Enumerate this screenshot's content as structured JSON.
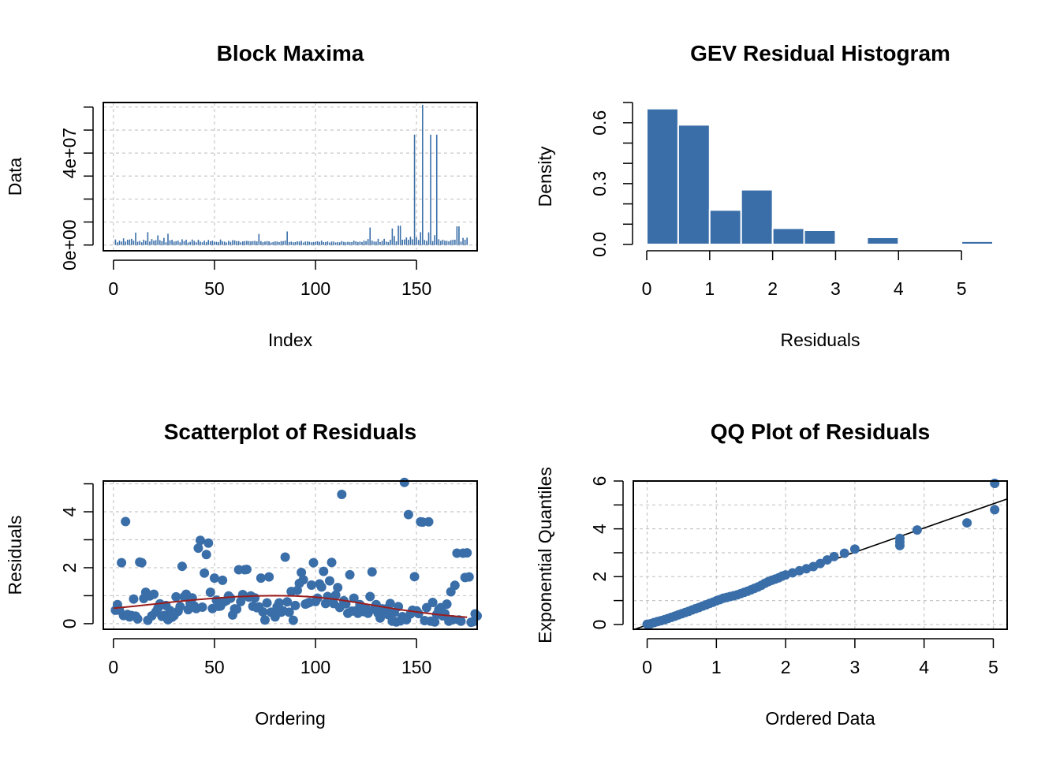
{
  "colors": {
    "primary": "#3A6EA8",
    "smooth": "#9B1C1C",
    "grid": "#C8C8C8",
    "refline": "#000000"
  },
  "chart_data": [
    {
      "type": "bar",
      "title": "Block Maxima",
      "xlabel": "Index",
      "ylabel": "Data",
      "xlim": [
        -5,
        180
      ],
      "ylim": [
        -2500000,
        62000000
      ],
      "grid": true,
      "x_ticks": [
        "0",
        "50",
        "100",
        "150"
      ],
      "y_ticks": [
        "0e+00",
        "4e+07"
      ],
      "values": [
        2400000,
        1200000,
        1900000,
        1500000,
        2900000,
        1500000,
        2300000,
        2400000,
        2700000,
        1900000,
        5400000,
        1400000,
        1800000,
        1200000,
        2300000,
        1800000,
        5600000,
        1500000,
        2600000,
        1900000,
        2100000,
        4200000,
        2100000,
        1700000,
        3100000,
        1200000,
        4900000,
        2000000,
        2300000,
        1500000,
        1700000,
        1900000,
        1200000,
        2500000,
        1700000,
        2300000,
        1100000,
        1400000,
        2400000,
        1800000,
        1200000,
        2300000,
        1500000,
        1200000,
        1900000,
        1300000,
        2200000,
        1600000,
        1900000,
        1400000,
        1400000,
        1300000,
        2400000,
        1600000,
        1500000,
        1100000,
        1800000,
        1400000,
        2100000,
        2000000,
        1700000,
        1700000,
        1200000,
        1600000,
        1700000,
        1800000,
        1700000,
        1600000,
        1700000,
        1800000,
        1600000,
        4800000,
        1700000,
        1300000,
        1500000,
        1700000,
        1600000,
        1100000,
        1300000,
        1600000,
        1500000,
        1300000,
        1700000,
        1700000,
        1900000,
        5900000,
        1300000,
        1500000,
        1200000,
        1300000,
        1600000,
        1500000,
        1800000,
        1100000,
        1500000,
        1600000,
        1400000,
        1200000,
        1300000,
        1400000,
        1600000,
        1400000,
        1900000,
        1300000,
        1300000,
        1600000,
        1100000,
        1500000,
        1500000,
        1100000,
        1300000,
        1200000,
        1700000,
        1400000,
        1200000,
        1400000,
        1300000,
        1300000,
        1900000,
        1600000,
        1300000,
        1500000,
        1300000,
        1900000,
        1700000,
        2600000,
        7600000,
        1900000,
        1500000,
        1500000,
        2700000,
        1300000,
        1800000,
        2700000,
        1500000,
        1300000,
        2300000,
        7200000,
        3900000,
        1600000,
        8400000,
        8400000,
        2300000,
        2400000,
        3300000,
        2300000,
        3600000,
        2500000,
        48000000,
        3300000,
        2200000,
        5600000,
        61000000,
        2200000,
        1800000,
        5500000,
        48000000,
        1700000,
        4300000,
        48000000,
        2500000,
        1800000,
        2300000,
        1900000,
        1800000,
        1600000,
        2100000,
        2300000,
        2300000,
        8100000,
        8100000,
        1500000,
        3100000,
        2300000,
        3200000
      ]
    },
    {
      "type": "histogram",
      "title": "GEV Residual Histogram",
      "xlabel": "Residuals",
      "ylabel": "Density",
      "xlim": [
        0,
        5.5
      ],
      "ylim": [
        0,
        0.7
      ],
      "grid": false,
      "x_ticks": [
        "0",
        "1",
        "2",
        "3",
        "4",
        "5"
      ],
      "y_ticks": [
        "0.0",
        "0.3",
        "0.6"
      ],
      "bins": [
        {
          "x0": 0.0,
          "x1": 0.5,
          "density": 0.67
        },
        {
          "x0": 0.5,
          "x1": 1.0,
          "density": 0.59
        },
        {
          "x0": 1.0,
          "x1": 1.5,
          "density": 0.17
        },
        {
          "x0": 1.5,
          "x1": 2.0,
          "density": 0.27
        },
        {
          "x0": 2.0,
          "x1": 2.5,
          "density": 0.08
        },
        {
          "x0": 2.5,
          "x1": 3.0,
          "density": 0.07
        },
        {
          "x0": 3.0,
          "x1": 3.5,
          "density": 0.0
        },
        {
          "x0": 3.5,
          "x1": 4.0,
          "density": 0.035
        },
        {
          "x0": 4.0,
          "x1": 4.5,
          "density": 0.0
        },
        {
          "x0": 4.5,
          "x1": 5.0,
          "density": 0.006
        },
        {
          "x0": 5.0,
          "x1": 5.5,
          "density": 0.016
        }
      ]
    },
    {
      "type": "scatter",
      "title": "Scatterplot of Residuals",
      "xlabel": "Ordering",
      "ylabel": "Residuals",
      "xlim": [
        -5,
        180
      ],
      "ylim": [
        -0.2,
        5.1
      ],
      "grid": true,
      "x_ticks": [
        "0",
        "50",
        "100",
        "150"
      ],
      "y_ticks": [
        "0",
        "2",
        "4"
      ],
      "values": [
        0.48,
        0.68,
        0.48,
        2.18,
        0.29,
        3.65,
        0.33,
        0.24,
        0.29,
        0.88,
        0.27,
        0.17,
        2.2,
        2.18,
        0.9,
        1.12,
        0.12,
        0.99,
        0.28,
        1.05,
        0.42,
        0.55,
        0.71,
        0.26,
        0.29,
        0.65,
        0.14,
        0.47,
        0.23,
        0.29,
        0.96,
        0.44,
        0.61,
        2.05,
        0.96,
        1.05,
        0.5,
        0.73,
        0.92,
        0.63,
        0.54,
        2.7,
        2.98,
        0.59,
        1.81,
        2.47,
        2.88,
        1.12,
        0.54,
        1.63,
        0.84,
        0.62,
        0.63,
        1.55,
        0.79,
        0.83,
        0.99,
        0.91,
        0.31,
        0.53,
        0.52,
        1.93,
        0.79,
        1.04,
        1.93,
        1.94,
        0.95,
        0.99,
        0.62,
        0.92,
        0.57,
        0.6,
        1.63,
        0.42,
        0.13,
        0.74,
        1.67,
        0.41,
        0.38,
        0.24,
        0.6,
        0.74,
        0.41,
        0.46,
        2.38,
        0.78,
        0.41,
        1.15,
        0.12,
        0.65,
        1.19,
        1.44,
        1.83,
        1.57,
        0.7,
        0.73,
        0.76,
        1.38,
        2.18,
        0.79,
        0.91,
        1.42,
        1.31,
        1.87,
        0.72,
        0.97,
        1.53,
        2.19,
        0.72,
        1.02,
        1.29,
        0.58,
        4.62,
        0.82,
        0.71,
        0.37,
        1.75,
        0.45,
        0.91,
        0.46,
        0.37,
        0.68,
        0.55,
        0.43,
        0.54,
        0.37,
        0.97,
        1.85,
        0.52,
        0.68,
        0.37,
        0.2,
        0.53,
        0.38,
        0.53,
        0.32,
        0.72,
        0.09,
        0.4,
        0.06,
        0.61,
        0.1,
        0.25,
        5.05,
        0.14,
        3.9,
        0.35,
        0.48,
        1.68,
        0.46,
        0.36,
        3.64,
        3.63,
        0.11,
        0.57,
        3.64,
        0.09,
        0.76,
        0.06,
        0.33,
        0.5,
        0.57,
        0.28,
        0.36,
        0.7,
        0.09,
        1.14,
        0.14,
        1.37,
        2.52,
        0.13,
        0.09,
        2.52,
        1.65,
        2.53,
        1.67,
        0.05,
        0.07,
        0.35,
        0.28
      ],
      "smooth": [
        [
          0,
          0.55
        ],
        [
          10,
          0.62
        ],
        [
          20,
          0.7
        ],
        [
          30,
          0.78
        ],
        [
          40,
          0.85
        ],
        [
          50,
          0.91
        ],
        [
          60,
          0.96
        ],
        [
          70,
          0.99
        ],
        [
          80,
          1.0
        ],
        [
          90,
          0.99
        ],
        [
          100,
          0.95
        ],
        [
          110,
          0.87
        ],
        [
          120,
          0.76
        ],
        [
          130,
          0.64
        ],
        [
          140,
          0.52
        ],
        [
          150,
          0.42
        ],
        [
          160,
          0.33
        ],
        [
          170,
          0.26
        ],
        [
          175,
          0.23
        ]
      ]
    },
    {
      "type": "scatter",
      "title": "QQ Plot of Residuals",
      "xlabel": "Ordered Data",
      "ylabel": "Exponential Quantiles",
      "xlim": [
        -0.2,
        5.2
      ],
      "ylim": [
        -0.2,
        6.0
      ],
      "grid": true,
      "x_ticks": [
        "0",
        "1",
        "2",
        "3",
        "4",
        "5"
      ],
      "y_ticks": [
        "0",
        "2",
        "4",
        "6"
      ],
      "points": [
        [
          0.0,
          0.01
        ],
        [
          0.05,
          0.03
        ],
        [
          0.1,
          0.08
        ],
        [
          0.15,
          0.12
        ],
        [
          0.2,
          0.16
        ],
        [
          0.25,
          0.2
        ],
        [
          0.3,
          0.25
        ],
        [
          0.35,
          0.3
        ],
        [
          0.4,
          0.35
        ],
        [
          0.45,
          0.4
        ],
        [
          0.5,
          0.45
        ],
        [
          0.55,
          0.5
        ],
        [
          0.6,
          0.55
        ],
        [
          0.65,
          0.61
        ],
        [
          0.7,
          0.66
        ],
        [
          0.75,
          0.71
        ],
        [
          0.8,
          0.77
        ],
        [
          0.85,
          0.82
        ],
        [
          0.9,
          0.88
        ],
        [
          0.95,
          0.93
        ],
        [
          1.0,
          0.99
        ],
        [
          1.05,
          1.04
        ],
        [
          1.1,
          1.1
        ],
        [
          1.15,
          1.13
        ],
        [
          1.2,
          1.17
        ],
        [
          1.25,
          1.2
        ],
        [
          1.3,
          1.24
        ],
        [
          1.35,
          1.29
        ],
        [
          1.4,
          1.34
        ],
        [
          1.45,
          1.39
        ],
        [
          1.5,
          1.45
        ],
        [
          1.55,
          1.51
        ],
        [
          1.6,
          1.57
        ],
        [
          1.65,
          1.64
        ],
        [
          1.7,
          1.72
        ],
        [
          1.75,
          1.79
        ],
        [
          1.8,
          1.85
        ],
        [
          1.85,
          1.9
        ],
        [
          1.9,
          1.95
        ],
        [
          1.95,
          2.02
        ],
        [
          2.0,
          2.07
        ],
        [
          2.1,
          2.16
        ],
        [
          2.2,
          2.25
        ],
        [
          2.3,
          2.33
        ],
        [
          2.4,
          2.42
        ],
        [
          2.5,
          2.55
        ],
        [
          2.6,
          2.7
        ],
        [
          2.7,
          2.84
        ],
        [
          2.85,
          2.98
        ],
        [
          3.0,
          3.15
        ],
        [
          3.65,
          3.3
        ],
        [
          3.65,
          3.45
        ],
        [
          3.65,
          3.6
        ],
        [
          3.9,
          3.95
        ],
        [
          4.62,
          4.25
        ],
        [
          5.02,
          4.8
        ],
        [
          5.02,
          5.9
        ]
      ],
      "refline": [
        [
          -0.2,
          -0.22
        ],
        [
          5.2,
          5.25
        ]
      ]
    }
  ]
}
